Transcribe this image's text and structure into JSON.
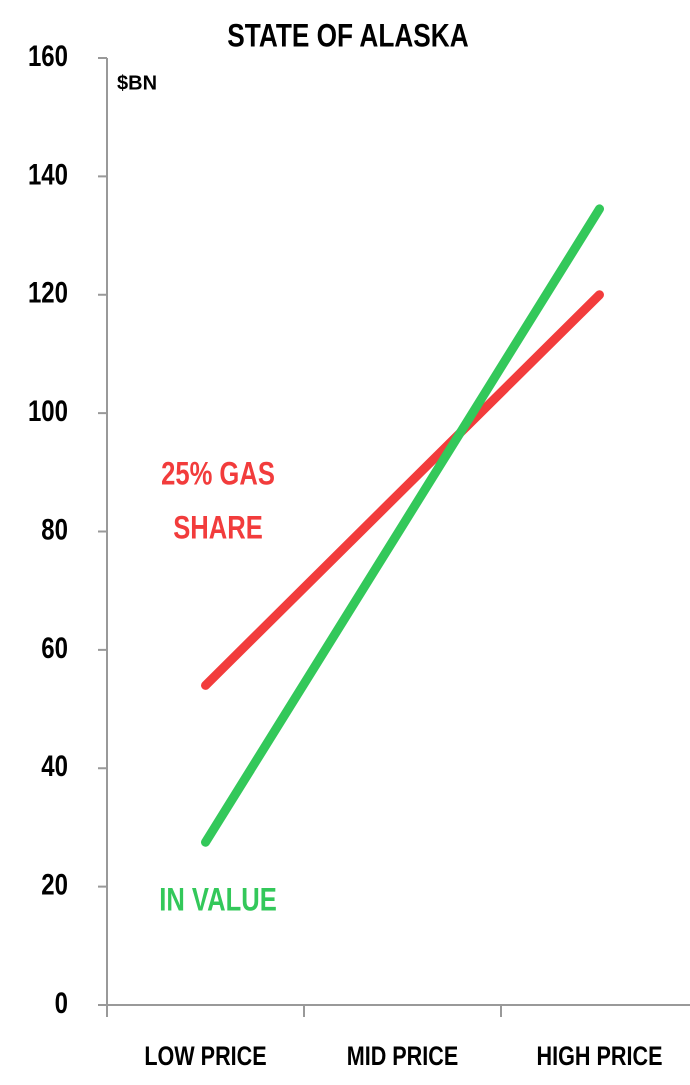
{
  "chart_data": {
    "type": "line",
    "title": "STATE OF ALASKA",
    "y_label": "$BN",
    "categories": [
      "LOW PRICE",
      "MID PRICE",
      "HIGH PRICE"
    ],
    "series": [
      {
        "label_lines": [
          "25% GAS",
          "SHARE"
        ],
        "color": "#f23c3c",
        "values": [
          54,
          87,
          120
        ]
      },
      {
        "label_lines": [
          "IN VALUE"
        ],
        "color": "#33c85a",
        "values": [
          27.5,
          81,
          134.5
        ]
      }
    ],
    "ylim": [
      0,
      160
    ],
    "yticks": [
      0,
      20,
      40,
      60,
      80,
      100,
      120,
      140,
      160
    ],
    "grid": false
  }
}
